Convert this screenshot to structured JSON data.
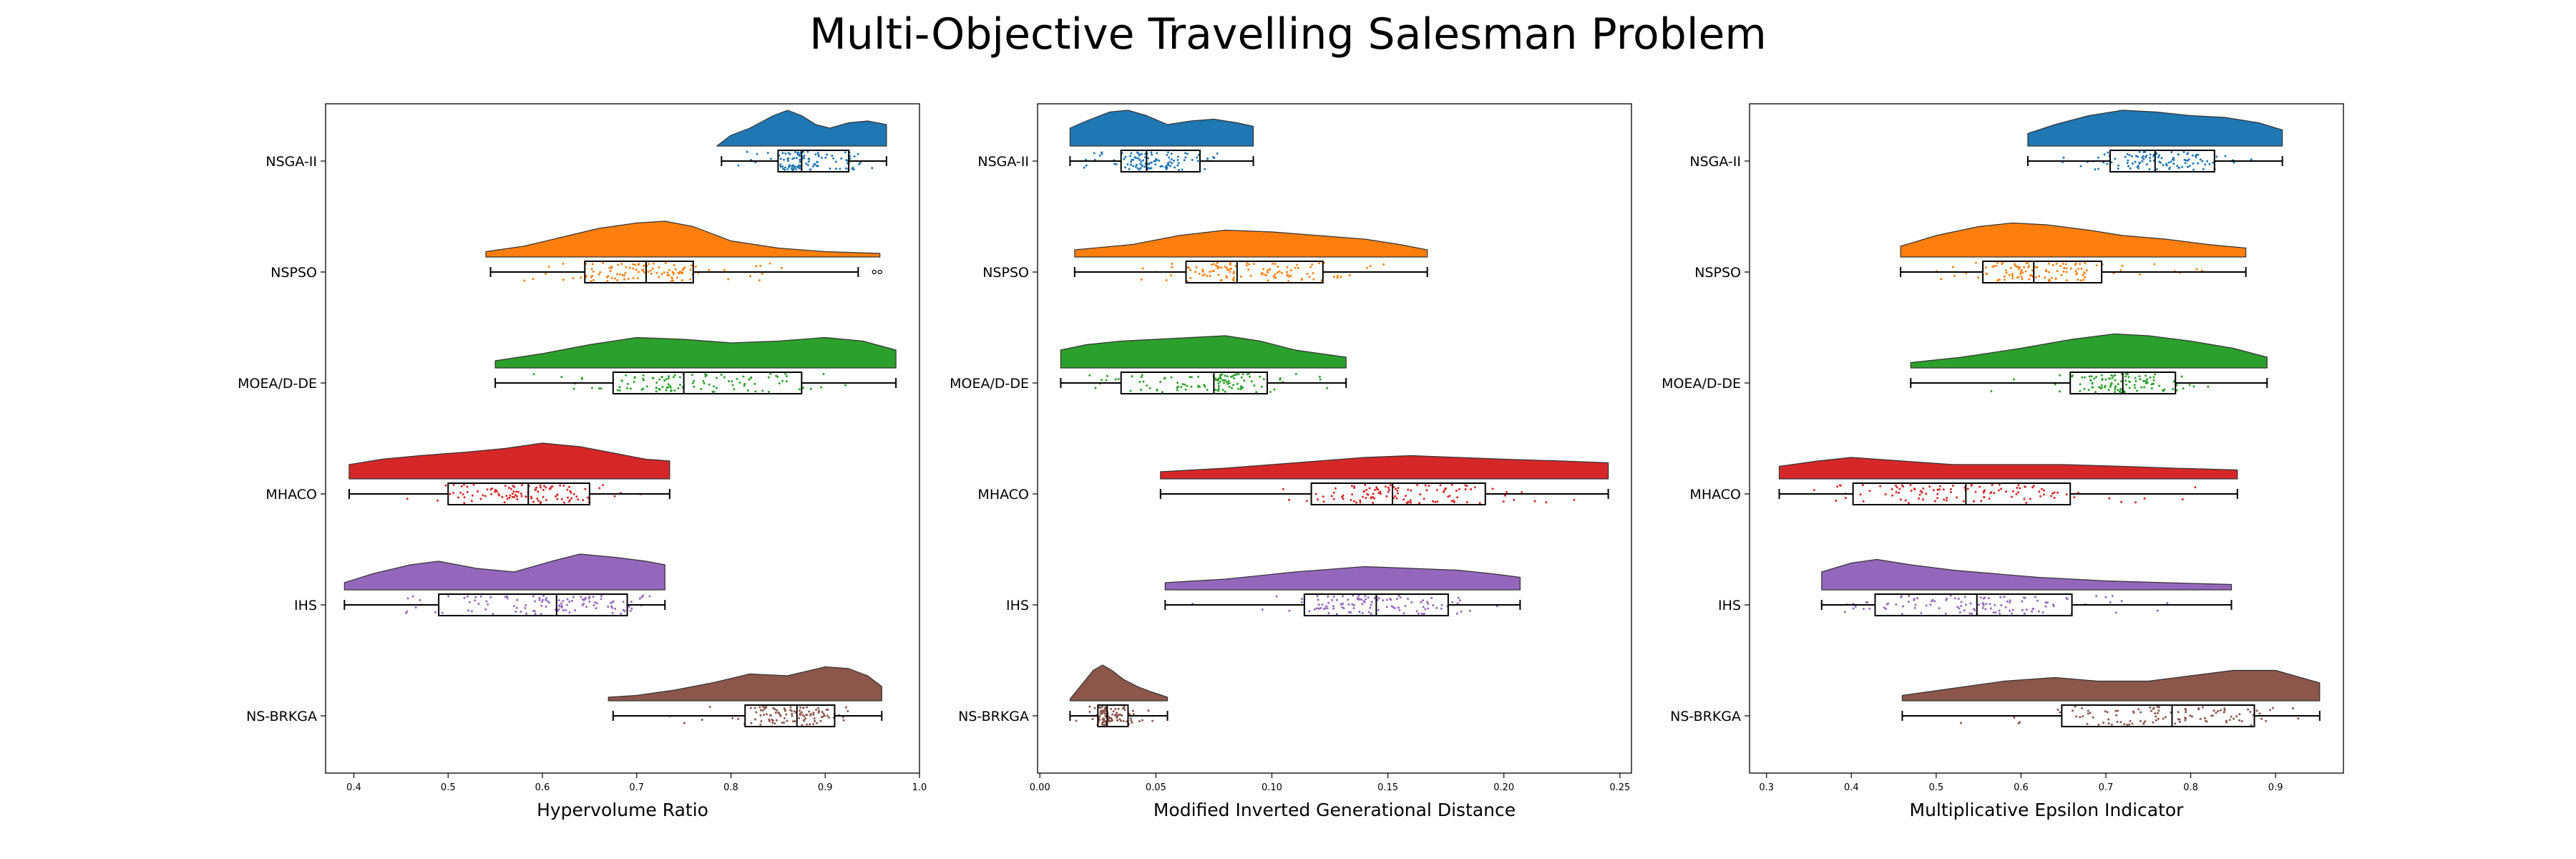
{
  "figure": {
    "title": "Multi-Objective Travelling Salesman Problem"
  },
  "chart_data": [
    {
      "type": "raincloud",
      "xlabel": "Hypervolume Ratio",
      "xlim": [
        0.37,
        1.0
      ],
      "xticks": [
        0.4,
        0.5,
        0.6,
        0.7,
        0.8,
        0.9,
        1.0
      ],
      "xtick_labels": [
        "0.4",
        "0.5",
        "0.6",
        "0.7",
        "0.8",
        "0.9",
        "1.0"
      ],
      "categories": [
        "NSGA-II",
        "NSPSO",
        "MOEA/D-DE",
        "MHACO",
        "IHS",
        "NS-BRKGA"
      ],
      "series": [
        {
          "color": "#1f77b4",
          "min": 0.79,
          "q1": 0.85,
          "median": 0.875,
          "q3": 0.925,
          "max": 0.965,
          "outliers": [],
          "density": [
            [
              0.785,
              0.0
            ],
            [
              0.8,
              0.3
            ],
            [
              0.82,
              0.5
            ],
            [
              0.845,
              0.85
            ],
            [
              0.86,
              1.0
            ],
            [
              0.875,
              0.85
            ],
            [
              0.89,
              0.6
            ],
            [
              0.905,
              0.5
            ],
            [
              0.925,
              0.65
            ],
            [
              0.945,
              0.7
            ],
            [
              0.965,
              0.6
            ]
          ]
        },
        {
          "color": "#ff7f0e",
          "min": 0.545,
          "q1": 0.645,
          "median": 0.71,
          "q3": 0.76,
          "max": 0.935,
          "outliers": [
            0.952,
            0.958
          ],
          "density": [
            [
              0.54,
              0.15
            ],
            [
              0.58,
              0.3
            ],
            [
              0.62,
              0.55
            ],
            [
              0.66,
              0.8
            ],
            [
              0.7,
              0.95
            ],
            [
              0.73,
              1.0
            ],
            [
              0.76,
              0.85
            ],
            [
              0.8,
              0.45
            ],
            [
              0.85,
              0.25
            ],
            [
              0.9,
              0.15
            ],
            [
              0.958,
              0.1
            ]
          ]
        },
        {
          "color": "#2ca02c",
          "min": 0.55,
          "q1": 0.675,
          "median": 0.75,
          "q3": 0.875,
          "max": 0.975,
          "outliers": [],
          "density": [
            [
              0.55,
              0.2
            ],
            [
              0.6,
              0.4
            ],
            [
              0.65,
              0.65
            ],
            [
              0.7,
              0.85
            ],
            [
              0.75,
              0.8
            ],
            [
              0.8,
              0.7
            ],
            [
              0.85,
              0.75
            ],
            [
              0.9,
              0.85
            ],
            [
              0.94,
              0.75
            ],
            [
              0.975,
              0.5
            ]
          ]
        },
        {
          "color": "#d62728",
          "min": 0.395,
          "q1": 0.5,
          "median": 0.585,
          "q3": 0.65,
          "max": 0.735,
          "outliers": [],
          "density": [
            [
              0.395,
              0.4
            ],
            [
              0.43,
              0.55
            ],
            [
              0.47,
              0.65
            ],
            [
              0.52,
              0.75
            ],
            [
              0.56,
              0.85
            ],
            [
              0.6,
              1.0
            ],
            [
              0.64,
              0.9
            ],
            [
              0.68,
              0.7
            ],
            [
              0.71,
              0.55
            ],
            [
              0.735,
              0.5
            ]
          ]
        },
        {
          "color": "#9467bd",
          "min": 0.39,
          "q1": 0.49,
          "median": 0.615,
          "q3": 0.69,
          "max": 0.73,
          "outliers": [],
          "density": [
            [
              0.39,
              0.2
            ],
            [
              0.42,
              0.45
            ],
            [
              0.46,
              0.7
            ],
            [
              0.49,
              0.8
            ],
            [
              0.53,
              0.6
            ],
            [
              0.57,
              0.5
            ],
            [
              0.61,
              0.8
            ],
            [
              0.64,
              1.0
            ],
            [
              0.68,
              0.9
            ],
            [
              0.71,
              0.8
            ],
            [
              0.73,
              0.7
            ]
          ]
        },
        {
          "color": "#8c564b",
          "min": 0.675,
          "q1": 0.815,
          "median": 0.87,
          "q3": 0.91,
          "max": 0.96,
          "outliers": [],
          "density": [
            [
              0.67,
              0.1
            ],
            [
              0.7,
              0.15
            ],
            [
              0.74,
              0.3
            ],
            [
              0.78,
              0.5
            ],
            [
              0.82,
              0.75
            ],
            [
              0.86,
              0.7
            ],
            [
              0.9,
              0.95
            ],
            [
              0.925,
              0.9
            ],
            [
              0.945,
              0.7
            ],
            [
              0.96,
              0.4
            ]
          ]
        }
      ]
    },
    {
      "type": "raincloud",
      "xlabel": "Modified Inverted Generational Distance",
      "xlim": [
        -0.001,
        0.255
      ],
      "xticks": [
        0.0,
        0.05,
        0.1,
        0.15,
        0.2,
        0.25
      ],
      "xtick_labels": [
        "0.00",
        "0.05",
        "0.10",
        "0.15",
        "0.20",
        "0.25"
      ],
      "categories": [
        "NSGA-II",
        "NSPSO",
        "MOEA/D-DE",
        "MHACO",
        "IHS",
        "NS-BRKGA"
      ],
      "series": [
        {
          "color": "#1f77b4",
          "min": 0.013,
          "q1": 0.035,
          "median": 0.046,
          "q3": 0.069,
          "max": 0.092,
          "outliers": [],
          "density": [
            [
              0.013,
              0.5
            ],
            [
              0.02,
              0.7
            ],
            [
              0.03,
              0.95
            ],
            [
              0.038,
              1.0
            ],
            [
              0.046,
              0.85
            ],
            [
              0.055,
              0.6
            ],
            [
              0.065,
              0.7
            ],
            [
              0.075,
              0.75
            ],
            [
              0.085,
              0.65
            ],
            [
              0.092,
              0.55
            ]
          ]
        },
        {
          "color": "#ff7f0e",
          "min": 0.015,
          "q1": 0.063,
          "median": 0.085,
          "q3": 0.122,
          "max": 0.167,
          "outliers": [],
          "density": [
            [
              0.015,
              0.2
            ],
            [
              0.04,
              0.35
            ],
            [
              0.06,
              0.6
            ],
            [
              0.08,
              0.75
            ],
            [
              0.1,
              0.7
            ],
            [
              0.12,
              0.6
            ],
            [
              0.14,
              0.5
            ],
            [
              0.155,
              0.35
            ],
            [
              0.167,
              0.2
            ]
          ]
        },
        {
          "color": "#2ca02c",
          "min": 0.009,
          "q1": 0.035,
          "median": 0.075,
          "q3": 0.098,
          "max": 0.132,
          "outliers": [],
          "density": [
            [
              0.009,
              0.5
            ],
            [
              0.02,
              0.65
            ],
            [
              0.035,
              0.75
            ],
            [
              0.05,
              0.8
            ],
            [
              0.065,
              0.85
            ],
            [
              0.08,
              0.9
            ],
            [
              0.095,
              0.75
            ],
            [
              0.11,
              0.5
            ],
            [
              0.132,
              0.3
            ]
          ]
        },
        {
          "color": "#d62728",
          "min": 0.052,
          "q1": 0.117,
          "median": 0.152,
          "q3": 0.192,
          "max": 0.245,
          "outliers": [],
          "density": [
            [
              0.052,
              0.2
            ],
            [
              0.08,
              0.3
            ],
            [
              0.11,
              0.45
            ],
            [
              0.14,
              0.6
            ],
            [
              0.16,
              0.65
            ],
            [
              0.18,
              0.6
            ],
            [
              0.2,
              0.55
            ],
            [
              0.225,
              0.5
            ],
            [
              0.245,
              0.45
            ]
          ]
        },
        {
          "color": "#9467bd",
          "min": 0.054,
          "q1": 0.114,
          "median": 0.145,
          "q3": 0.176,
          "max": 0.207,
          "outliers": [],
          "density": [
            [
              0.054,
              0.2
            ],
            [
              0.08,
              0.3
            ],
            [
              0.11,
              0.5
            ],
            [
              0.14,
              0.65
            ],
            [
              0.16,
              0.6
            ],
            [
              0.18,
              0.55
            ],
            [
              0.195,
              0.45
            ],
            [
              0.207,
              0.35
            ]
          ]
        },
        {
          "color": "#8c564b",
          "min": 0.013,
          "q1": 0.025,
          "median": 0.029,
          "q3": 0.038,
          "max": 0.055,
          "outliers": [],
          "density": [
            [
              0.013,
              0.05
            ],
            [
              0.018,
              0.45
            ],
            [
              0.023,
              0.85
            ],
            [
              0.027,
              1.0
            ],
            [
              0.031,
              0.85
            ],
            [
              0.036,
              0.6
            ],
            [
              0.042,
              0.4
            ],
            [
              0.048,
              0.25
            ],
            [
              0.055,
              0.1
            ]
          ]
        }
      ]
    },
    {
      "type": "raincloud",
      "xlabel": "Multiplicative Epsilon Indicator",
      "xlim": [
        0.28,
        0.98
      ],
      "xticks": [
        0.3,
        0.4,
        0.5,
        0.6,
        0.7,
        0.8,
        0.9
      ],
      "xtick_labels": [
        "0.3",
        "0.4",
        "0.5",
        "0.6",
        "0.7",
        "0.8",
        "0.9"
      ],
      "categories": [
        "NSGA-II",
        "NSPSO",
        "MOEA/D-DE",
        "MHACO",
        "IHS",
        "NS-BRKGA"
      ],
      "series": [
        {
          "color": "#1f77b4",
          "min": 0.608,
          "q1": 0.705,
          "median": 0.758,
          "q3": 0.828,
          "max": 0.908,
          "outliers": [],
          "density": [
            [
              0.608,
              0.35
            ],
            [
              0.64,
              0.6
            ],
            [
              0.68,
              0.85
            ],
            [
              0.72,
              1.0
            ],
            [
              0.76,
              0.95
            ],
            [
              0.8,
              0.85
            ],
            [
              0.84,
              0.8
            ],
            [
              0.88,
              0.65
            ],
            [
              0.908,
              0.45
            ]
          ]
        },
        {
          "color": "#ff7f0e",
          "min": 0.458,
          "q1": 0.555,
          "median": 0.615,
          "q3": 0.695,
          "max": 0.865,
          "outliers": [],
          "density": [
            [
              0.458,
              0.3
            ],
            [
              0.5,
              0.6
            ],
            [
              0.55,
              0.85
            ],
            [
              0.59,
              0.95
            ],
            [
              0.63,
              0.9
            ],
            [
              0.68,
              0.75
            ],
            [
              0.72,
              0.6
            ],
            [
              0.77,
              0.5
            ],
            [
              0.82,
              0.35
            ],
            [
              0.865,
              0.25
            ]
          ]
        },
        {
          "color": "#2ca02c",
          "min": 0.47,
          "q1": 0.658,
          "median": 0.72,
          "q3": 0.782,
          "max": 0.89,
          "outliers": [],
          "density": [
            [
              0.47,
              0.15
            ],
            [
              0.53,
              0.3
            ],
            [
              0.6,
              0.55
            ],
            [
              0.66,
              0.8
            ],
            [
              0.71,
              0.95
            ],
            [
              0.75,
              0.9
            ],
            [
              0.8,
              0.75
            ],
            [
              0.85,
              0.55
            ],
            [
              0.89,
              0.3
            ]
          ]
        },
        {
          "color": "#d62728",
          "min": 0.315,
          "q1": 0.402,
          "median": 0.535,
          "q3": 0.658,
          "max": 0.855,
          "outliers": [],
          "density": [
            [
              0.315,
              0.35
            ],
            [
              0.36,
              0.5
            ],
            [
              0.4,
              0.6
            ],
            [
              0.46,
              0.5
            ],
            [
              0.52,
              0.4
            ],
            [
              0.58,
              0.4
            ],
            [
              0.65,
              0.4
            ],
            [
              0.72,
              0.35
            ],
            [
              0.78,
              0.3
            ],
            [
              0.855,
              0.25
            ]
          ]
        },
        {
          "color": "#9467bd",
          "min": 0.365,
          "q1": 0.428,
          "median": 0.548,
          "q3": 0.66,
          "max": 0.848,
          "outliers": [],
          "density": [
            [
              0.365,
              0.5
            ],
            [
              0.4,
              0.75
            ],
            [
              0.43,
              0.85
            ],
            [
              0.47,
              0.7
            ],
            [
              0.52,
              0.55
            ],
            [
              0.57,
              0.45
            ],
            [
              0.62,
              0.35
            ],
            [
              0.7,
              0.25
            ],
            [
              0.77,
              0.2
            ],
            [
              0.848,
              0.15
            ]
          ]
        },
        {
          "color": "#8c564b",
          "min": 0.46,
          "q1": 0.648,
          "median": 0.778,
          "q3": 0.875,
          "max": 0.952,
          "outliers": [],
          "density": [
            [
              0.46,
              0.15
            ],
            [
              0.52,
              0.35
            ],
            [
              0.58,
              0.55
            ],
            [
              0.64,
              0.65
            ],
            [
              0.69,
              0.55
            ],
            [
              0.75,
              0.55
            ],
            [
              0.8,
              0.7
            ],
            [
              0.85,
              0.85
            ],
            [
              0.9,
              0.85
            ],
            [
              0.952,
              0.5
            ]
          ]
        }
      ]
    }
  ]
}
